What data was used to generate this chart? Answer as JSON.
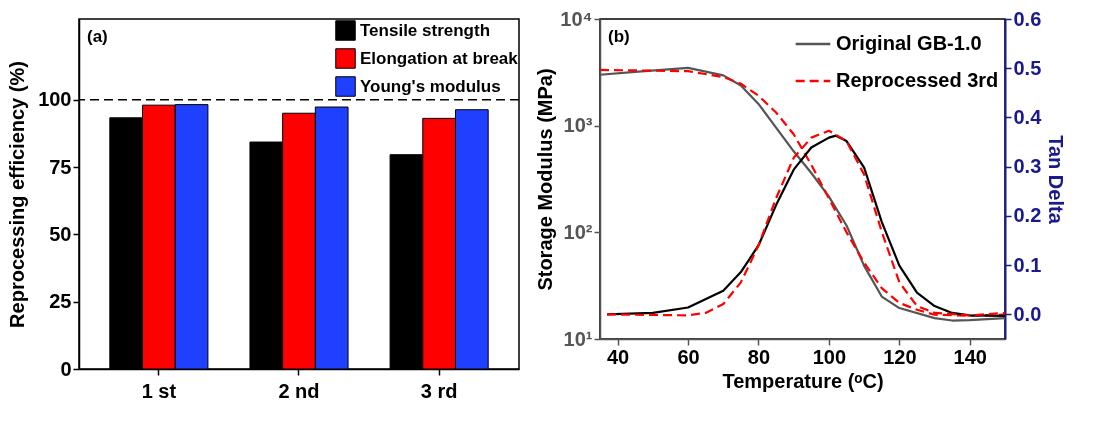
{
  "chart_data": [
    {
      "type": "bar",
      "ylabel": "Reprocessing efficiency (%)",
      "categories": [
        "1 st",
        "2 nd",
        "3 rd"
      ],
      "series": [
        {
          "name": "Tensile strength",
          "color": "#000000",
          "values": [
            93.3,
            84.3,
            79.6
          ]
        },
        {
          "name": "Elongation at break",
          "color": "#ff0000",
          "values": [
            98.0,
            95.0,
            93.1
          ]
        },
        {
          "name": "Young's modulus",
          "color": "#2040ff",
          "values": [
            98.2,
            97.3,
            96.3
          ]
        }
      ],
      "ylim": [
        0,
        130
      ],
      "yticks": [
        0,
        25,
        50,
        75,
        100
      ],
      "grid": false,
      "legend": "top right",
      "ref_lines": [
        {
          "axis": "y",
          "value": 100,
          "label": null,
          "color": "#000000",
          "line_style": "dashed"
        }
      ],
      "annotations": [
        "(a)"
      ]
    },
    {
      "type": "line",
      "xlabel": "Temperature (ᵒC)",
      "ylabel": "Storage Modulus (MPa)",
      "y2label": "Tan Delta",
      "series": [
        {
          "name": "Original GB-1.0",
          "color": "#555555",
          "line_style": "solid",
          "x": [
            35,
            45,
            60,
            70,
            75,
            80,
            85,
            90,
            95,
            100,
            105,
            110,
            115,
            120,
            130,
            135,
            140,
            150
          ],
          "values": [
            3000,
            3200,
            3480,
            2960,
            2380,
            1600,
            960,
            575,
            360,
            216,
            116,
            48.5,
            25,
            19.5,
            15.7,
            14.9,
            15,
            15.7
          ]
        },
        {
          "name": "Reprocessed 3rd",
          "color": "#ff0000",
          "line_style": "dashed",
          "x": [
            35,
            60,
            70,
            75,
            80,
            85,
            90,
            95,
            100,
            105,
            110,
            115,
            120,
            125,
            130,
            140,
            150
          ],
          "values": [
            3330,
            3240,
            2860,
            2470,
            1910,
            1330,
            830,
            430,
            208,
            100,
            52,
            30,
            21.8,
            18.8,
            16.9,
            16.5,
            16.9
          ]
        },
        {
          "color": "#000000",
          "line_style": "solid",
          "axis": "y2",
          "x": [
            37,
            50,
            60,
            70,
            75,
            80,
            85,
            90,
            95,
            100,
            102,
            105,
            110,
            115,
            120,
            125,
            130,
            135,
            140,
            150
          ],
          "values": [
            0.0,
            0.003,
            0.014,
            0.048,
            0.086,
            0.14,
            0.222,
            0.294,
            0.339,
            0.359,
            0.363,
            0.352,
            0.298,
            0.188,
            0.099,
            0.044,
            0.017,
            0.003,
            -0.002,
            -0.003
          ]
        },
        {
          "color": "#ff0000",
          "line_style": "dashed",
          "axis": "y2",
          "x": [
            37,
            60,
            65,
            70,
            75,
            80,
            85,
            90,
            95,
            100,
            105,
            110,
            115,
            120,
            125,
            130,
            140,
            150
          ],
          "values": [
            0.0,
            -0.002,
            0.003,
            0.021,
            0.065,
            0.14,
            0.236,
            0.318,
            0.359,
            0.373,
            0.352,
            0.284,
            0.168,
            0.065,
            0.017,
            0.003,
            -0.002,
            0.003
          ]
        }
      ],
      "xlim": [
        35,
        150
      ],
      "xticks": [
        40,
        60,
        80,
        100,
        120,
        140
      ],
      "ylim": [
        10,
        10000
      ],
      "yticks": [
        {
          "value": 10,
          "label": "10¹"
        },
        {
          "value": 100,
          "label": "10²"
        },
        {
          "value": 1000,
          "label": "10³"
        },
        {
          "value": 10000,
          "label": "10⁴"
        }
      ],
      "y2lim": [
        -0.05,
        0.6
      ],
      "y2ticks": [
        {
          "value": 0,
          "label": "0.0"
        },
        0.1,
        0.2,
        0.3,
        0.4,
        0.5,
        0.6
      ],
      "log": "y",
      "grid": false,
      "legend": "top right",
      "annotations": [
        "(b)"
      ]
    }
  ]
}
